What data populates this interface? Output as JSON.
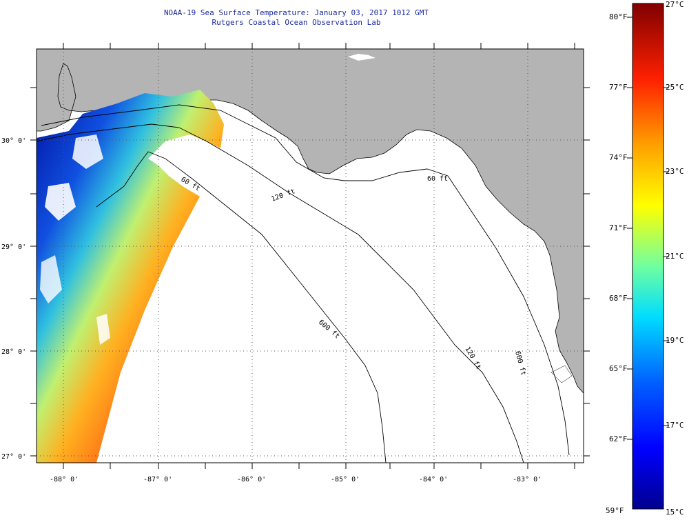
{
  "header": {
    "title": "NOAA-19 Sea Surface Temperature:  January 03, 2017 1012 GMT",
    "subtitle": "Rutgers Coastal Ocean Observation Lab"
  },
  "map": {
    "lat_labels": [
      "30° 0'",
      "29° 0'",
      "28° 0'",
      "27° 0'"
    ],
    "lon_labels": [
      "-88° 0'",
      "-87° 0'",
      "-86° 0'",
      "-85° 0'",
      "-84° 0'",
      "-83° 0'"
    ],
    "lat_range": [
      26.95,
      30.85
    ],
    "lon_range": [
      -88.35,
      -82.65
    ],
    "contours": [
      "60 ft",
      "120 ft",
      "600 ft",
      "60 ft",
      "120 ft",
      "600 ft"
    ],
    "land_color": "#b4b4b4",
    "water_color": "#ffffff"
  },
  "colorbar": {
    "fahrenheit_labels": [
      "80°F",
      "77°F",
      "74°F",
      "71°F",
      "68°F",
      "65°F",
      "62°F",
      "59°F"
    ],
    "celsius_labels": [
      "27°C",
      "25°C",
      "23°C",
      "21°C",
      "19°C",
      "17°C",
      "15°C"
    ],
    "range_c": [
      15,
      27
    ],
    "colors": [
      "#00008f",
      "#0000ff",
      "#0080ff",
      "#00ffff",
      "#80ff80",
      "#ffff00",
      "#ff8000",
      "#ff0000",
      "#800000"
    ]
  }
}
